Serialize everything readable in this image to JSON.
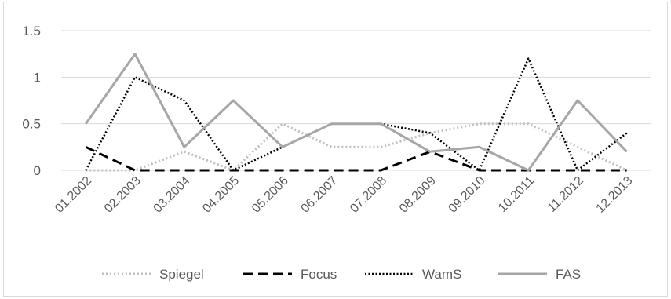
{
  "chart_data": {
    "type": "line",
    "title": "",
    "xlabel": "",
    "ylabel": "",
    "categories": [
      "01.2002",
      "02.2003",
      "03.2004",
      "04.2005",
      "05.2006",
      "06.2007",
      "07.2008",
      "08.2009",
      "09.2010",
      "10.2011",
      "11.2012",
      "12.2013"
    ],
    "yticks": [
      "0",
      "0.5",
      "1",
      "1.5"
    ],
    "ylim": [
      0,
      1.5
    ],
    "grid": true,
    "legend_position": "bottom",
    "series": [
      {
        "name": "Spiegel",
        "color": "#bfbfbf",
        "style": "dotted",
        "values": [
          0,
          0,
          0.2,
          0,
          0.5,
          0.25,
          0.25,
          0.4,
          0.5,
          0.5,
          0.25,
          0
        ]
      },
      {
        "name": "Focus",
        "color": "#000000",
        "style": "dashed",
        "values": [
          0.25,
          0,
          0,
          0,
          0,
          0,
          0,
          0.2,
          0,
          0,
          0,
          0
        ]
      },
      {
        "name": "WamS",
        "color": "#000000",
        "style": "dotted-fine",
        "values": [
          0,
          1,
          0.75,
          0,
          0.25,
          0.5,
          0.5,
          0.4,
          0,
          1.2,
          0,
          0.4
        ]
      },
      {
        "name": "FAS",
        "color": "#a6a6a6",
        "style": "solid",
        "values": [
          0.5,
          1.25,
          0.25,
          0.75,
          0.25,
          0.5,
          0.5,
          0.2,
          0.25,
          0,
          0.75,
          0.2
        ]
      }
    ]
  }
}
